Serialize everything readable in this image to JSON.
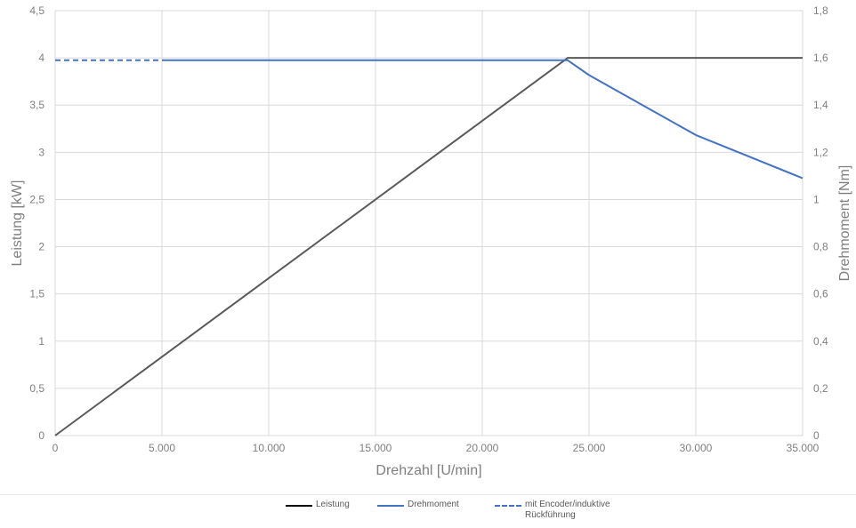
{
  "chart_data": {
    "type": "line",
    "xlabel": "Drehzahl [U/min]",
    "ylabel_left": "Leistung [kW]",
    "ylabel_right": "Drehmoment [Nm]",
    "xlim": [
      0,
      35000
    ],
    "ylim_left": [
      0,
      4.5
    ],
    "ylim_right": [
      0,
      1.8
    ],
    "grid": true,
    "legend_position": "bottom",
    "x_ticks": [
      0,
      5000,
      10000,
      15000,
      20000,
      25000,
      30000,
      35000
    ],
    "x_tick_labels": [
      "0",
      "5.000",
      "10.000",
      "15.000",
      "20.000",
      "25.000",
      "30.000",
      "35.000"
    ],
    "y_left_ticks": [
      0,
      0.5,
      1,
      1.5,
      2,
      2.5,
      3,
      3.5,
      4,
      4.5
    ],
    "y_left_tick_labels": [
      "0",
      "0,5",
      "1",
      "1,5",
      "2",
      "2,5",
      "3",
      "3,5",
      "4",
      "4,5"
    ],
    "y_right_ticks": [
      0,
      0.2,
      0.4,
      0.6,
      0.8,
      1.0,
      1.2,
      1.4,
      1.6,
      1.8
    ],
    "y_right_tick_labels": [
      "0",
      "0,2",
      "0,4",
      "0,6",
      "0,8",
      "1",
      "1,2",
      "1,4",
      "1,6",
      "1,8"
    ],
    "series": [
      {
        "name": "Leistung",
        "axis": "left",
        "color": "#595959",
        "style": "solid",
        "x": [
          0,
          24000,
          35000
        ],
        "y": [
          0,
          4.0,
          4.0
        ]
      },
      {
        "name": "Drehmoment",
        "axis": "right",
        "color": "#4472c4",
        "style": "solid",
        "x": [
          5000,
          24000,
          25000,
          30000,
          35000
        ],
        "y": [
          1.59,
          1.59,
          1.527,
          1.273,
          1.09
        ]
      },
      {
        "name": "mit Encoder/induktive Rückführung",
        "axis": "right",
        "color": "#4472c4",
        "style": "dashed",
        "x": [
          0,
          5000
        ],
        "y": [
          1.59,
          1.59
        ]
      }
    ]
  }
}
